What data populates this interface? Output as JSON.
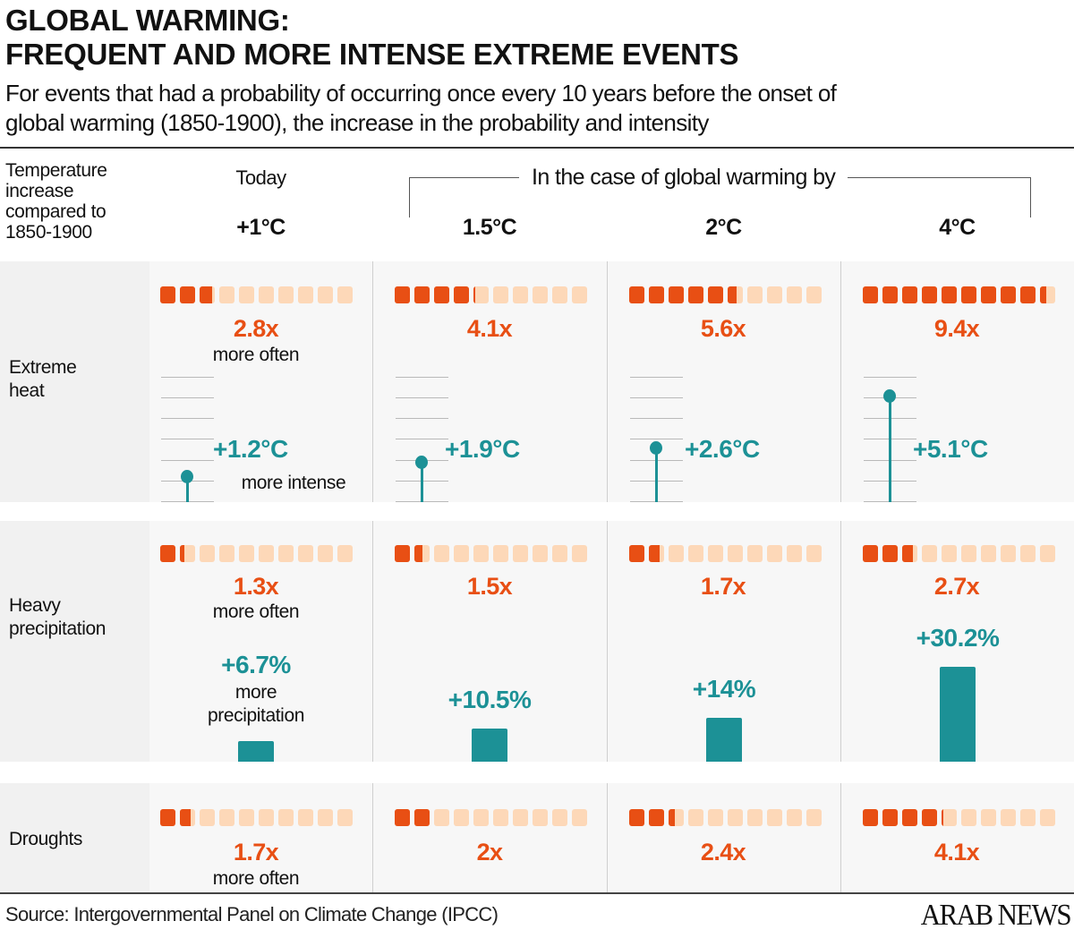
{
  "header": {
    "title_line1": "GLOBAL WARMING:",
    "title_line2": "FREQUENT AND MORE INTENSE EXTREME EVENTS",
    "subtitle_line1": "For events that had a probability of occurring once every 10 years before the onset of",
    "subtitle_line2": "global warming (1850-1900), the increase in the probability and intensity"
  },
  "columns_header": {
    "temp_label_lines": [
      "Temperature",
      "increase",
      "compared to",
      "1850-1900"
    ],
    "today_label": "Today",
    "scenario_label": "In the case of global warming by",
    "columns": [
      "+1°C",
      "1.5°C",
      "2°C",
      "4°C"
    ]
  },
  "rows": {
    "heat": {
      "label_lines": [
        "Extreme",
        "heat"
      ],
      "freq_note": "more often",
      "intensity_note": "more intense"
    },
    "precip": {
      "label_lines": [
        "Heavy",
        "precipitation"
      ],
      "freq_note": "more often",
      "precip_note_lines": [
        "more",
        "precipitation"
      ]
    },
    "drought": {
      "label_lines": [
        "Droughts"
      ],
      "freq_note": "more often"
    }
  },
  "footer": {
    "source": "Source: Intergovernmental Panel on Climate Change (IPCC)",
    "logo": "ARAB NEWS"
  },
  "colors": {
    "frequency": "#e84f14",
    "frequency_light": "#fdd8b8",
    "intensity": "#1c9196",
    "cell_bg": "#f7f7f7",
    "label_bg": "#f1f1f1"
  },
  "chart_data": [
    {
      "type": "bar",
      "title": "Extreme heat — increase in frequency (out of 10 squares)",
      "categories": [
        "+1°C",
        "1.5°C",
        "2°C",
        "4°C"
      ],
      "values": [
        2.8,
        4.1,
        5.6,
        9.4
      ],
      "labels": [
        "2.8x",
        "4.1x",
        "5.6x",
        "9.4x"
      ],
      "ylim": [
        0,
        10
      ]
    },
    {
      "type": "scatter",
      "title": "Extreme heat — intensity (lollipop)",
      "categories": [
        "+1°C",
        "1.5°C",
        "2°C",
        "4°C"
      ],
      "values": [
        1.2,
        1.9,
        2.6,
        5.1
      ],
      "labels": [
        "+1.2°C",
        "+1.9°C",
        "+2.6°C",
        "+5.1°C"
      ],
      "ylim": [
        0,
        6
      ],
      "grid": true,
      "unit": "°C"
    },
    {
      "type": "bar",
      "title": "Heavy precipitation — increase in frequency (out of 10 squares)",
      "categories": [
        "+1°C",
        "1.5°C",
        "2°C",
        "4°C"
      ],
      "values": [
        1.3,
        1.5,
        1.7,
        2.7
      ],
      "labels": [
        "1.3x",
        "1.5x",
        "1.7x",
        "2.7x"
      ],
      "ylim": [
        0,
        10
      ]
    },
    {
      "type": "bar",
      "title": "Heavy precipitation — more precipitation",
      "categories": [
        "+1°C",
        "1.5°C",
        "2°C",
        "4°C"
      ],
      "values": [
        6.7,
        10.5,
        14,
        30.2
      ],
      "labels": [
        "+6.7%",
        "+10.5%",
        "+14%",
        "+30.2%"
      ],
      "unit": "%"
    },
    {
      "type": "bar",
      "title": "Droughts — increase in frequency (out of 10 squares)",
      "categories": [
        "+1°C",
        "1.5°C",
        "2°C",
        "4°C"
      ],
      "values": [
        1.7,
        2,
        2.4,
        4.1
      ],
      "labels": [
        "1.7x",
        "2x",
        "2.4x",
        "4.1x"
      ],
      "ylim": [
        0,
        10
      ]
    }
  ]
}
